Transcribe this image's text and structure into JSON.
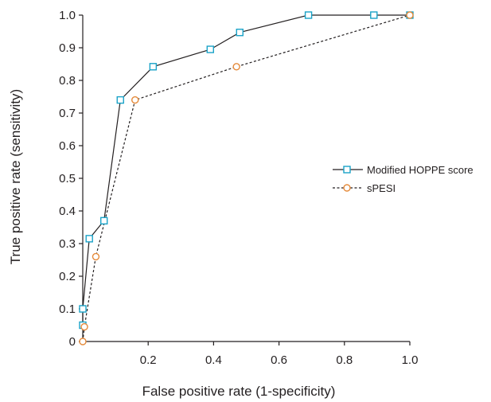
{
  "chart_data": {
    "type": "line",
    "title": "",
    "xlabel": "False positive rate (1-specificity)",
    "ylabel": "True positive rate (sensitivity)",
    "xlim": [
      0,
      1
    ],
    "ylim": [
      0,
      1
    ],
    "x_ticks": [
      {
        "value": 0.2,
        "label": "0.2"
      },
      {
        "value": 0.4,
        "label": "0.4"
      },
      {
        "value": 0.6,
        "label": "0.6"
      },
      {
        "value": 0.8,
        "label": "0.8"
      },
      {
        "value": 1.0,
        "label": "1.0"
      }
    ],
    "y_ticks": [
      {
        "value": 0.0,
        "label": "0"
      },
      {
        "value": 0.1,
        "label": "0.1"
      },
      {
        "value": 0.2,
        "label": "0.2"
      },
      {
        "value": 0.3,
        "label": "0.3"
      },
      {
        "value": 0.4,
        "label": "0.4"
      },
      {
        "value": 0.5,
        "label": "0.5"
      },
      {
        "value": 0.6,
        "label": "0.6"
      },
      {
        "value": 0.7,
        "label": "0.7"
      },
      {
        "value": 0.8,
        "label": "0.8"
      },
      {
        "value": 0.9,
        "label": "0.9"
      },
      {
        "value": 1.0,
        "label": "1.0"
      }
    ],
    "grid": false,
    "legend_position": "right",
    "series": [
      {
        "name": "Modified HOPPE score",
        "line_style": "solid",
        "marker": "square",
        "line_color": "#231f20",
        "marker_color": "#1aa3c8",
        "x": [
          0.0,
          0.0,
          0.02,
          0.065,
          0.115,
          0.215,
          0.39,
          0.48,
          0.69,
          0.89,
          1.0
        ],
        "y": [
          0.05,
          0.1,
          0.315,
          0.37,
          0.74,
          0.842,
          0.895,
          0.947,
          1.0,
          1.0,
          1.0
        ]
      },
      {
        "name": "sPESI",
        "line_style": "dashed",
        "marker": "circle",
        "line_color": "#231f20",
        "marker_color": "#e58a3a",
        "x": [
          0.0,
          0.005,
          0.04,
          0.16,
          0.47,
          1.0
        ],
        "y": [
          0.0,
          0.045,
          0.26,
          0.74,
          0.842,
          1.0
        ]
      }
    ]
  }
}
